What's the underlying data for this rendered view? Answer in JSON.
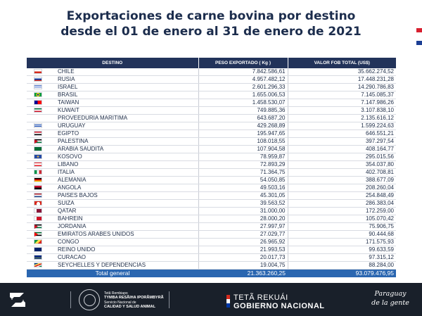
{
  "title": {
    "line1": "Exportaciones de carne bovina por destino",
    "line2": "desde el 01 de enero al 31 de enero de 2021"
  },
  "table": {
    "headers": [
      "DESTINO",
      "PESO EXPORTADO ( Kg )",
      "VALOR FOB TOTAL (US$)"
    ],
    "rows": [
      {
        "destino": "CHILE",
        "peso": "7.842.586,61",
        "valor": "35.662.274,52",
        "flag": "chile-flag-icon"
      },
      {
        "destino": "RUSIA",
        "peso": "4.957.482,12",
        "valor": "17.448.231,28",
        "flag": "russia-flag-icon"
      },
      {
        "destino": "ISRAEL",
        "peso": "2.601.296,33",
        "valor": "14.290.786,83",
        "flag": "israel-flag-icon"
      },
      {
        "destino": "BRASIL",
        "peso": "1.655.006,53",
        "valor": "7.145.085,37",
        "flag": "brazil-flag-icon"
      },
      {
        "destino": "TAIWAN",
        "peso": "1.458.530,07",
        "valor": "7.147.986,26",
        "flag": "taiwan-flag-icon"
      },
      {
        "destino": "KUWAIT",
        "peso": "749.885,36",
        "valor": "3.107.838,10",
        "flag": "kuwait-flag-icon"
      },
      {
        "destino": "PROVEEDURIA MARITIMA",
        "peso": "643.687,20",
        "valor": "2.135.616,12",
        "flag": ""
      },
      {
        "destino": "URUGUAY",
        "peso": "429.268,89",
        "valor": "1.599.224,63",
        "flag": "uruguay-flag-icon"
      },
      {
        "destino": "EGIPTO",
        "peso": "195.947,65",
        "valor": "646.551,21",
        "flag": "egypt-flag-icon"
      },
      {
        "destino": "PALESTINA",
        "peso": "108.018,55",
        "valor": "397.297,54",
        "flag": "palestine-flag-icon"
      },
      {
        "destino": "ARABIA SAUDITA",
        "peso": "107.904,58",
        "valor": "408.164,77",
        "flag": "saudi-arabia-flag-icon"
      },
      {
        "destino": "KOSOVO",
        "peso": "78.959,87",
        "valor": "295.015,56",
        "flag": "kosovo-flag-icon"
      },
      {
        "destino": "LIBANO",
        "peso": "72.893,29",
        "valor": "354.037,80",
        "flag": "lebanon-flag-icon"
      },
      {
        "destino": "ITALIA",
        "peso": "71.364,75",
        "valor": "402.708,81",
        "flag": "italy-flag-icon"
      },
      {
        "destino": "ALEMANIA",
        "peso": "54.050,85",
        "valor": "388.677,09",
        "flag": "germany-flag-icon"
      },
      {
        "destino": "ANGOLA",
        "peso": "49.503,16",
        "valor": "208.260,04",
        "flag": "angola-flag-icon"
      },
      {
        "destino": "PAISES BAJOS",
        "peso": "45.301,05",
        "valor": "254.848,49",
        "flag": "netherlands-flag-icon"
      },
      {
        "destino": "SUIZA",
        "peso": "39.563,52",
        "valor": "286.383,04",
        "flag": "switzerland-flag-icon"
      },
      {
        "destino": "QATAR",
        "peso": "31.000,00",
        "valor": "172.259,00",
        "flag": "qatar-flag-icon"
      },
      {
        "destino": "BAHREIN",
        "peso": "28.000,20",
        "valor": "105.070,42",
        "flag": "bahrain-flag-icon"
      },
      {
        "destino": "JORDANIA",
        "peso": "27.997,97",
        "valor": "75.906,75",
        "flag": "jordan-flag-icon"
      },
      {
        "destino": "EMIRATOS ARABES UNIDOS",
        "peso": "27.029,77",
        "valor": "90.444,68",
        "flag": "uae-flag-icon"
      },
      {
        "destino": "CONGO",
        "peso": "26.965,92",
        "valor": "171.575,93",
        "flag": "congo-flag-icon"
      },
      {
        "destino": "REINO UNIDO",
        "peso": "21.993,53",
        "valor": "99.633,59",
        "flag": "uk-flag-icon"
      },
      {
        "destino": "CURACAO",
        "peso": "20.017,73",
        "valor": "97.315,12",
        "flag": "curacao-flag-icon"
      },
      {
        "destino": "SEYCHELLES Y DEPENDENCIAS",
        "peso": "19.004,75",
        "valor": "88.284,00",
        "flag": "seychelles-flag-icon"
      }
    ],
    "total": {
      "label": "Total general",
      "peso": "21.363.260,25",
      "valor": "93.079.476,95"
    }
  },
  "footer": {
    "ministry_line1": "Tetã Rembiapo",
    "ministry_line2": "TYMBA RESÃIHA IPORÃMBYRÃ",
    "ministry_line3": "Servicio Nacional de",
    "ministry_line4": "CALIDAD Y SALUD ANIMAL",
    "gov_line1": "TETÃ REKUÁI",
    "gov_line2": "GOBIERNO NACIONAL",
    "slogan_line1": "Paraguay",
    "slogan_line2": "de la gente"
  },
  "colors": {
    "header_bg": "#22335a",
    "total_bg": "#2a66b0",
    "footer_bg": "#19202a",
    "title": "#1c2d4d"
  }
}
